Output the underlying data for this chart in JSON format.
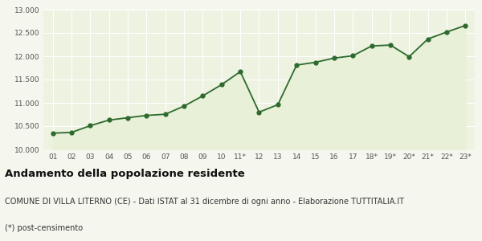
{
  "x_labels": [
    "01",
    "02",
    "03",
    "04",
    "05",
    "06",
    "07",
    "08",
    "09",
    "10",
    "11*",
    "12",
    "13",
    "14",
    "15",
    "16",
    "17",
    "18*",
    "19*",
    "20*",
    "21*",
    "22*",
    "23*"
  ],
  "populations": [
    10350,
    10365,
    10510,
    10630,
    10680,
    10730,
    10755,
    10930,
    11150,
    11390,
    11670,
    10800,
    10960,
    11810,
    11870,
    11960,
    12010,
    12220,
    12240,
    11990,
    12370,
    12520,
    12660
  ],
  "ylim": [
    10000,
    13000
  ],
  "yticks": [
    10000,
    10500,
    11000,
    11500,
    12000,
    12500,
    13000
  ],
  "line_color": "#2d6a2d",
  "fill_color": "#e8f0d8",
  "marker_color": "#2d6a2d",
  "bg_color": "#f5f7ee",
  "plot_bg_color": "#eef2e0",
  "grid_color": "#ffffff",
  "title": "Andamento della popolazione residente",
  "subtitle": "COMUNE DI VILLA LITERNO (CE) - Dati ISTAT al 31 dicembre di ogni anno - Elaborazione TUTTITALIA.IT",
  "footnote": "(*) post-censimento",
  "title_fontsize": 9.5,
  "subtitle_fontsize": 7,
  "footnote_fontsize": 7
}
